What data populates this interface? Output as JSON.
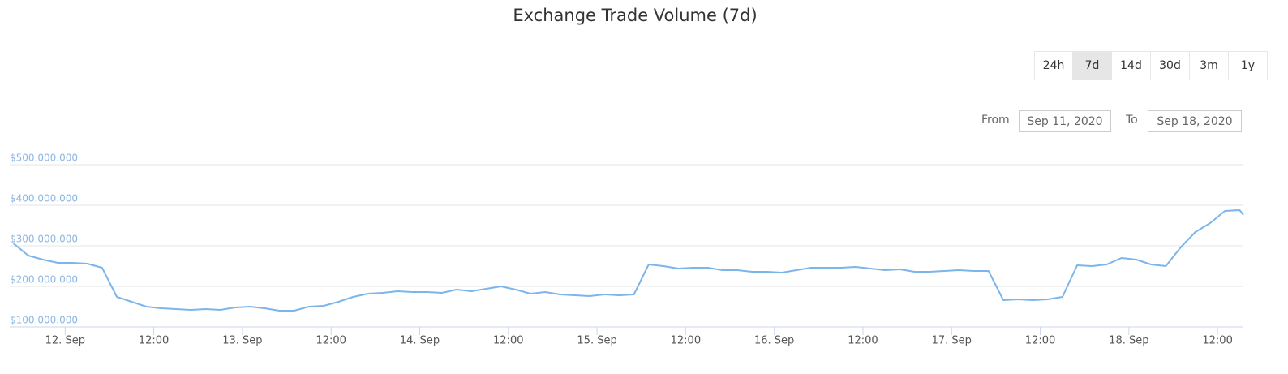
{
  "chart_data": {
    "type": "line",
    "title": "Exchange Trade Volume (7d)",
    "range_selector": {
      "buttons": [
        "24h",
        "7d",
        "14d",
        "30d",
        "3m",
        "1y"
      ],
      "selected": 1,
      "from_label": "From",
      "from": "Sep 11, 2020",
      "to_label": "To",
      "to": "Sep 18, 2020"
    },
    "x": [
      "Sep 11 17:00",
      "Sep 11 19:00",
      "Sep 11 21:00",
      "Sep 11 23:00",
      "Sep 12 01:00",
      "Sep 12 03:00",
      "Sep 12 05:00",
      "Sep 12 07:00",
      "Sep 12 09:00",
      "Sep 12 11:00",
      "Sep 12 13:00",
      "Sep 12 15:00",
      "Sep 12 17:00",
      "Sep 12 19:00",
      "Sep 12 21:00",
      "Sep 12 23:00",
      "Sep 13 01:00",
      "Sep 13 03:00",
      "Sep 13 05:00",
      "Sep 13 07:00",
      "Sep 13 09:00",
      "Sep 13 11:00",
      "Sep 13 13:00",
      "Sep 13 15:00",
      "Sep 13 17:00",
      "Sep 13 19:00",
      "Sep 13 21:00",
      "Sep 13 23:00",
      "Sep 14 01:00",
      "Sep 14 03:00",
      "Sep 14 05:00",
      "Sep 14 07:00",
      "Sep 14 09:00",
      "Sep 14 11:00",
      "Sep 14 13:00",
      "Sep 14 15:00",
      "Sep 14 17:00",
      "Sep 14 19:00",
      "Sep 14 21:00",
      "Sep 14 23:00",
      "Sep 15 01:00",
      "Sep 15 03:00",
      "Sep 15 05:00",
      "Sep 15 07:00",
      "Sep 15 09:00",
      "Sep 15 11:00",
      "Sep 15 13:00",
      "Sep 15 15:00",
      "Sep 15 17:00",
      "Sep 15 19:00",
      "Sep 15 21:00",
      "Sep 15 23:00",
      "Sep 16 01:00",
      "Sep 16 03:00",
      "Sep 16 05:00",
      "Sep 16 07:00",
      "Sep 16 09:00",
      "Sep 16 11:00",
      "Sep 16 13:00",
      "Sep 16 15:00",
      "Sep 16 17:00",
      "Sep 16 19:00",
      "Sep 16 21:00",
      "Sep 16 23:00",
      "Sep 17 01:00",
      "Sep 17 03:00",
      "Sep 17 05:00",
      "Sep 17 07:00",
      "Sep 17 09:00",
      "Sep 17 11:00",
      "Sep 17 13:00",
      "Sep 17 15:00",
      "Sep 17 17:00",
      "Sep 17 19:00",
      "Sep 17 21:00",
      "Sep 17 23:00",
      "Sep 18 01:00",
      "Sep 18 03:00",
      "Sep 18 05:00",
      "Sep 18 07:00",
      "Sep 18 09:00",
      "Sep 18 11:00",
      "Sep 18 13:00",
      "Sep 18 15:00",
      "Sep 18 15:30"
    ],
    "values": [
      306000000,
      276000000,
      266000000,
      258000000,
      258000000,
      256000000,
      246000000,
      174000000,
      162000000,
      150000000,
      146000000,
      144000000,
      142000000,
      144000000,
      142000000,
      148000000,
      150000000,
      146000000,
      140000000,
      140000000,
      150000000,
      152000000,
      162000000,
      174000000,
      182000000,
      184000000,
      188000000,
      186000000,
      186000000,
      184000000,
      192000000,
      188000000,
      194000000,
      200000000,
      192000000,
      182000000,
      186000000,
      180000000,
      178000000,
      176000000,
      180000000,
      178000000,
      180000000,
      254000000,
      250000000,
      244000000,
      246000000,
      246000000,
      240000000,
      240000000,
      236000000,
      236000000,
      234000000,
      240000000,
      246000000,
      246000000,
      246000000,
      248000000,
      244000000,
      240000000,
      242000000,
      236000000,
      236000000,
      238000000,
      240000000,
      238000000,
      238000000,
      166000000,
      168000000,
      166000000,
      168000000,
      174000000,
      252000000,
      250000000,
      254000000,
      270000000,
      266000000,
      254000000,
      250000000,
      296000000,
      334000000,
      356000000,
      386000000,
      388000000,
      376000000
    ],
    "color": "#7cb5ec",
    "xlim": [
      "Sep 11 16:30",
      "Sep 18 15:30"
    ],
    "xticks": [
      {
        "value": "Sep 12 00:00",
        "label": "12. Sep"
      },
      {
        "value": "Sep 12 12:00",
        "label": "12:00"
      },
      {
        "value": "Sep 13 00:00",
        "label": "13. Sep"
      },
      {
        "value": "Sep 13 12:00",
        "label": "12:00"
      },
      {
        "value": "Sep 14 00:00",
        "label": "14. Sep"
      },
      {
        "value": "Sep 14 12:00",
        "label": "12:00"
      },
      {
        "value": "Sep 15 00:00",
        "label": "15. Sep"
      },
      {
        "value": "Sep 15 12:00",
        "label": "12:00"
      },
      {
        "value": "Sep 16 00:00",
        "label": "16. Sep"
      },
      {
        "value": "Sep 16 12:00",
        "label": "12:00"
      },
      {
        "value": "Sep 17 00:00",
        "label": "17. Sep"
      },
      {
        "value": "Sep 17 12:00",
        "label": "12:00"
      },
      {
        "value": "Sep 18 00:00",
        "label": "18. Sep"
      },
      {
        "value": "Sep 18 12:00",
        "label": "12:00"
      }
    ],
    "ylim": [
      100000000,
      500000000
    ],
    "yticks": [
      {
        "value": 100000000,
        "label": "$100.000.000"
      },
      {
        "value": 200000000,
        "label": "$200.000.000"
      },
      {
        "value": 300000000,
        "label": "$300.000.000"
      },
      {
        "value": 400000000,
        "label": "$400.000.000"
      },
      {
        "value": 500000000,
        "label": "$500.000.000"
      }
    ],
    "grid": true
  }
}
